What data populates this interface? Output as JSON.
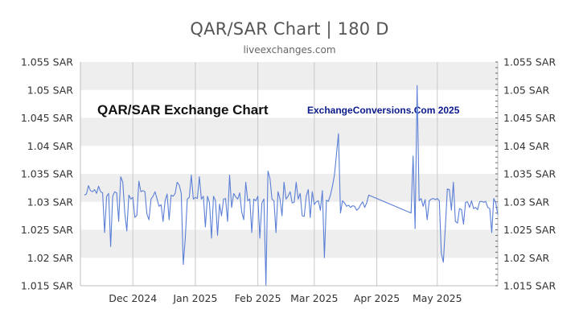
{
  "header": {
    "title": "QAR/SAR Chart | 180 D",
    "subtitle": "liveexchanges.com"
  },
  "watermarks": {
    "left": "QAR/SAR Exchange Chart",
    "right": "ExchangeConversions.Com 2025"
  },
  "colors": {
    "line": "#5b7fd6",
    "band": "#eeeeee",
    "grid": "#c8c8c8"
  },
  "chart_data": {
    "type": "line",
    "title": "QAR/SAR Chart | 180 D",
    "xlabel": "",
    "ylabel": "",
    "ylim": [
      1.015,
      1.055
    ],
    "yticks": [
      1.015,
      1.02,
      1.025,
      1.03,
      1.035,
      1.04,
      1.045,
      1.05,
      1.055
    ],
    "yticks_left_labels": [
      "1.015 SAR",
      "1.02 SAR",
      "1.025 SAR",
      "1.03 SAR",
      "1.035 SAR",
      "1.04 SAR",
      "1.045 SAR",
      "1.05 SAR",
      "1.055 SAR"
    ],
    "yticks_right_labels": [
      "1.015 SAR",
      "1.02 SAR",
      "1.025 SAR",
      "1.03 SAR",
      "1.035 SAR",
      "1.04 SAR",
      "1.045 SAR",
      "1.05 SAR",
      "1.055 SAR"
    ],
    "xlim": [
      "2024-11-05",
      "2025-05-31"
    ],
    "xticks": [
      {
        "label": "Dec 2024",
        "date": "2024-12-01"
      },
      {
        "label": "Jan 2025",
        "date": "2025-01-01"
      },
      {
        "label": "Feb 2025",
        "date": "2025-02-01"
      },
      {
        "label": "Mar 2025",
        "date": "2025-03-01"
      },
      {
        "label": "Apr 2025",
        "date": "2025-04-01"
      },
      {
        "label": "May 2025",
        "date": "2025-05-01"
      }
    ],
    "grid": true,
    "series": [
      {
        "values": [
          [
            "2024-11-07",
            1.0312
          ],
          [
            "2024-11-08",
            1.0314
          ],
          [
            "2024-11-09",
            1.0329
          ],
          [
            "2024-11-10",
            1.032
          ],
          [
            "2024-11-11",
            1.0318
          ],
          [
            "2024-11-12",
            1.0322
          ],
          [
            "2024-11-13",
            1.0315
          ],
          [
            "2024-11-14",
            1.0328
          ],
          [
            "2024-11-15",
            1.0318
          ],
          [
            "2024-11-16",
            1.0316
          ],
          [
            "2024-11-17",
            1.0245
          ],
          [
            "2024-11-18",
            1.031
          ],
          [
            "2024-11-19",
            1.0315
          ],
          [
            "2024-11-20",
            1.022
          ],
          [
            "2024-11-21",
            1.031
          ],
          [
            "2024-11-22",
            1.0318
          ],
          [
            "2024-11-23",
            1.0316
          ],
          [
            "2024-11-24",
            1.0265
          ],
          [
            "2024-11-25",
            1.0345
          ],
          [
            "2024-11-26",
            1.0335
          ],
          [
            "2024-11-27",
            1.028
          ],
          [
            "2024-11-28",
            1.0248
          ],
          [
            "2024-11-29",
            1.0312
          ],
          [
            "2024-11-30",
            1.0305
          ],
          [
            "2024-12-01",
            1.0308
          ],
          [
            "2024-12-02",
            1.0272
          ],
          [
            "2024-12-03",
            1.0276
          ],
          [
            "2024-12-04",
            1.0337
          ],
          [
            "2024-12-05",
            1.0318
          ],
          [
            "2024-12-06",
            1.032
          ],
          [
            "2024-12-07",
            1.0318
          ],
          [
            "2024-12-08",
            1.0278
          ],
          [
            "2024-12-09",
            1.0268
          ],
          [
            "2024-12-10",
            1.0305
          ],
          [
            "2024-12-11",
            1.031
          ],
          [
            "2024-12-12",
            1.0318
          ],
          [
            "2024-12-13",
            1.0305
          ],
          [
            "2024-12-14",
            1.0292
          ],
          [
            "2024-12-15",
            1.0295
          ],
          [
            "2024-12-16",
            1.0265
          ],
          [
            "2024-12-17",
            1.0302
          ],
          [
            "2024-12-18",
            1.0314
          ],
          [
            "2024-12-19",
            1.0268
          ],
          [
            "2024-12-20",
            1.0312
          ],
          [
            "2024-12-21",
            1.031
          ],
          [
            "2024-12-22",
            1.0315
          ],
          [
            "2024-12-23",
            1.0335
          ],
          [
            "2024-12-24",
            1.033
          ],
          [
            "2024-12-25",
            1.0315
          ],
          [
            "2024-12-26",
            1.0188
          ],
          [
            "2024-12-27",
            1.0235
          ],
          [
            "2024-12-28",
            1.0305
          ],
          [
            "2024-12-29",
            1.0308
          ],
          [
            "2024-12-30",
            1.0348
          ],
          [
            "2024-12-31",
            1.0305
          ],
          [
            "2025-01-01",
            1.0308
          ],
          [
            "2025-01-02",
            1.0306
          ],
          [
            "2025-01-03",
            1.0345
          ],
          [
            "2025-01-04",
            1.0305
          ],
          [
            "2025-01-05",
            1.031
          ],
          [
            "2025-01-06",
            1.0255
          ],
          [
            "2025-01-07",
            1.031
          ],
          [
            "2025-01-08",
            1.0298
          ],
          [
            "2025-01-09",
            1.0235
          ],
          [
            "2025-01-10",
            1.031
          ],
          [
            "2025-01-11",
            1.0302
          ],
          [
            "2025-01-12",
            1.024
          ],
          [
            "2025-01-13",
            1.0296
          ],
          [
            "2025-01-14",
            1.0275
          ],
          [
            "2025-01-15",
            1.0305
          ],
          [
            "2025-01-16",
            1.0306
          ],
          [
            "2025-01-17",
            1.0265
          ],
          [
            "2025-01-18",
            1.0348
          ],
          [
            "2025-01-19",
            1.029
          ],
          [
            "2025-01-20",
            1.0315
          ],
          [
            "2025-01-21",
            1.0309
          ],
          [
            "2025-01-22",
            1.0305
          ],
          [
            "2025-01-23",
            1.0316
          ],
          [
            "2025-01-24",
            1.0282
          ],
          [
            "2025-01-25",
            1.0268
          ],
          [
            "2025-01-26",
            1.0335
          ],
          [
            "2025-01-27",
            1.0302
          ],
          [
            "2025-01-28",
            1.0305
          ],
          [
            "2025-01-29",
            1.0245
          ],
          [
            "2025-01-30",
            1.0305
          ],
          [
            "2025-01-31",
            1.0302
          ],
          [
            "2025-02-01",
            1.031
          ],
          [
            "2025-02-02",
            1.0235
          ],
          [
            "2025-02-03",
            1.0298
          ],
          [
            "2025-02-04",
            1.0305
          ],
          [
            "2025-02-05",
            1.0151
          ],
          [
            "2025-02-06",
            1.0355
          ],
          [
            "2025-02-07",
            1.0342
          ],
          [
            "2025-02-08",
            1.0305
          ],
          [
            "2025-02-09",
            1.0302
          ],
          [
            "2025-02-10",
            1.0245
          ],
          [
            "2025-02-11",
            1.0318
          ],
          [
            "2025-02-12",
            1.0305
          ],
          [
            "2025-02-13",
            1.0275
          ],
          [
            "2025-02-14",
            1.0335
          ],
          [
            "2025-02-15",
            1.0305
          ],
          [
            "2025-02-16",
            1.031
          ],
          [
            "2025-02-17",
            1.0318
          ],
          [
            "2025-02-18",
            1.0298
          ],
          [
            "2025-02-19",
            1.0299
          ],
          [
            "2025-02-20",
            1.0335
          ],
          [
            "2025-02-21",
            1.0305
          ],
          [
            "2025-02-22",
            1.0315
          ],
          [
            "2025-02-23",
            1.0275
          ],
          [
            "2025-02-24",
            1.0274
          ],
          [
            "2025-02-25",
            1.031
          ],
          [
            "2025-02-26",
            1.0322
          ],
          [
            "2025-02-27",
            1.0272
          ],
          [
            "2025-02-28",
            1.0318
          ],
          [
            "2025-03-01",
            1.0295
          ],
          [
            "2025-03-02",
            1.03
          ],
          [
            "2025-03-03",
            1.0302
          ],
          [
            "2025-03-04",
            1.0285
          ],
          [
            "2025-03-05",
            1.032
          ],
          [
            "2025-03-06",
            1.02
          ],
          [
            "2025-03-07",
            1.0303
          ],
          [
            "2025-03-08",
            1.0301
          ],
          [
            "2025-03-09",
            1.0312
          ],
          [
            "2025-03-10",
            1.0328
          ],
          [
            "2025-03-11",
            1.0348
          ],
          [
            "2025-03-12",
            1.0385
          ],
          [
            "2025-03-13",
            1.0422
          ],
          [
            "2025-03-14",
            1.028
          ],
          [
            "2025-03-15",
            1.0302
          ],
          [
            "2025-03-16",
            1.0298
          ],
          [
            "2025-03-17",
            1.0292
          ],
          [
            "2025-03-18",
            1.0294
          ],
          [
            "2025-03-19",
            1.029
          ],
          [
            "2025-03-20",
            1.0293
          ],
          [
            "2025-03-21",
            1.0292
          ],
          [
            "2025-03-22",
            1.0285
          ],
          [
            "2025-03-23",
            1.0288
          ],
          [
            "2025-03-24",
            1.0295
          ],
          [
            "2025-03-25",
            1.03
          ],
          [
            "2025-03-26",
            1.029
          ],
          [
            "2025-03-27",
            1.0298
          ],
          [
            "2025-03-28",
            1.0312
          ],
          [
            "2025-04-18",
            1.028
          ],
          [
            "2025-04-19",
            1.0382
          ],
          [
            "2025-04-20",
            1.0252
          ],
          [
            "2025-04-21",
            1.0508
          ],
          [
            "2025-04-22",
            1.0302
          ],
          [
            "2025-04-23",
            1.0306
          ],
          [
            "2025-04-24",
            1.0292
          ],
          [
            "2025-04-25",
            1.0304
          ],
          [
            "2025-04-26",
            1.0268
          ],
          [
            "2025-04-27",
            1.0302
          ],
          [
            "2025-04-28",
            1.0305
          ],
          [
            "2025-04-29",
            1.0306
          ],
          [
            "2025-04-30",
            1.0304
          ],
          [
            "2025-05-01",
            1.0306
          ],
          [
            "2025-05-02",
            1.0302
          ],
          [
            "2025-05-03",
            1.0208
          ],
          [
            "2025-05-04",
            1.0192
          ],
          [
            "2025-05-05",
            1.0255
          ],
          [
            "2025-05-06",
            1.0323
          ],
          [
            "2025-05-07",
            1.0322
          ],
          [
            "2025-05-08",
            1.0285
          ],
          [
            "2025-05-09",
            1.0335
          ],
          [
            "2025-05-10",
            1.0265
          ],
          [
            "2025-05-11",
            1.0262
          ],
          [
            "2025-05-12",
            1.0288
          ],
          [
            "2025-05-13",
            1.0286
          ],
          [
            "2025-05-14",
            1.026
          ],
          [
            "2025-05-15",
            1.0299
          ],
          [
            "2025-05-16",
            1.03
          ],
          [
            "2025-05-17",
            1.029
          ],
          [
            "2025-05-18",
            1.0302
          ],
          [
            "2025-05-19",
            1.0288
          ],
          [
            "2025-05-20",
            1.029
          ],
          [
            "2025-05-21",
            1.0286
          ],
          [
            "2025-05-22",
            1.03
          ],
          [
            "2025-05-23",
            1.0301
          ],
          [
            "2025-05-24",
            1.0299
          ],
          [
            "2025-05-25",
            1.0301
          ],
          [
            "2025-05-26",
            1.029
          ],
          [
            "2025-05-27",
            1.0288
          ],
          [
            "2025-05-28",
            1.0245
          ],
          [
            "2025-05-29",
            1.0306
          ],
          [
            "2025-05-30",
            1.0298
          ],
          [
            "2025-05-31",
            1.0277
          ]
        ]
      }
    ]
  }
}
